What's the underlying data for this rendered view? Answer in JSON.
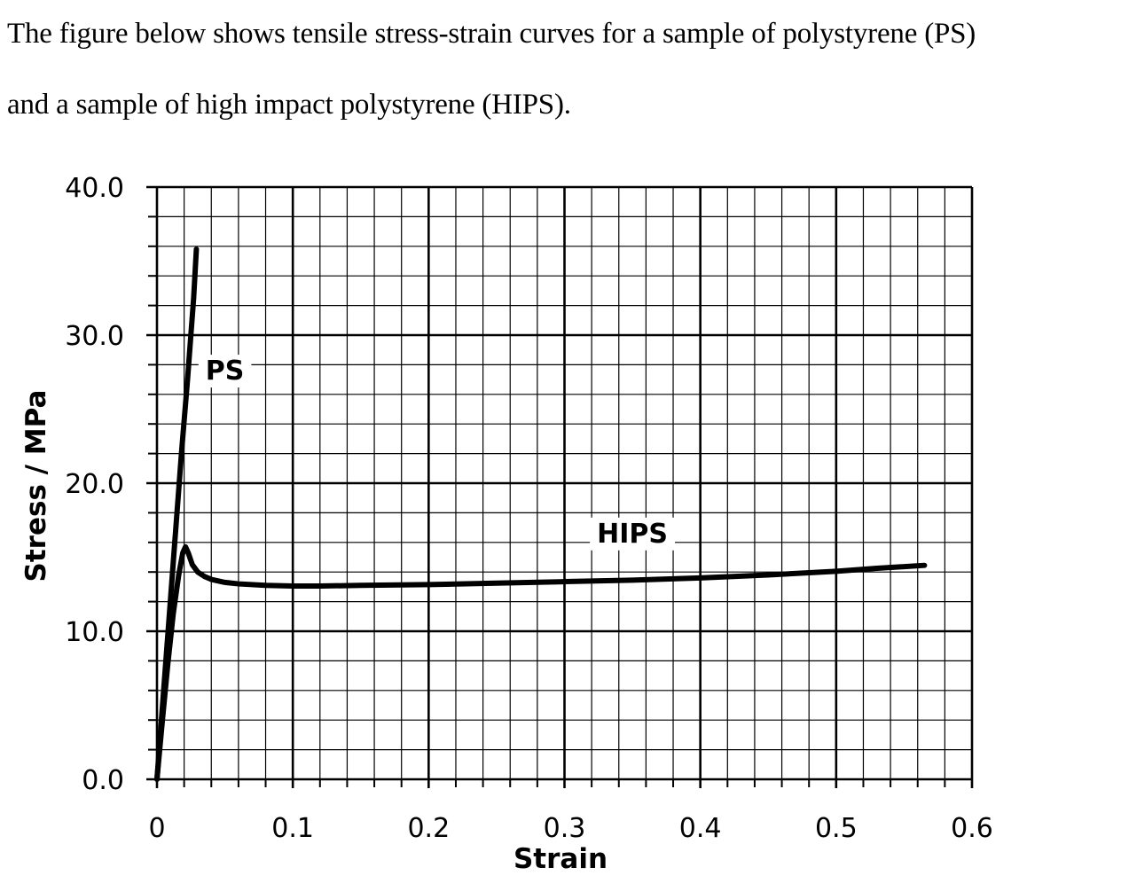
{
  "intro": {
    "line1": "The figure below shows tensile stress-strain curves for a sample of polystyrene (PS)",
    "line2": "and a sample of high impact polystyrene (HIPS)."
  },
  "chart_data": {
    "type": "line",
    "title": "",
    "xlabel": "Strain",
    "ylabel": "Stress / MPa",
    "xlim": [
      0,
      0.6
    ],
    "ylim": [
      0,
      40
    ],
    "x_ticks": [
      0,
      0.1,
      0.2,
      0.3,
      0.4,
      0.5,
      0.6
    ],
    "x_tick_labels": [
      "0",
      "0.1",
      "0.2",
      "0.3",
      "0.4",
      "0.5",
      "0.6"
    ],
    "y_ticks": [
      0,
      10,
      20,
      30,
      40
    ],
    "y_tick_labels": [
      "0.0",
      "10.0",
      "20.0",
      "30.0",
      "40.0"
    ],
    "grid": {
      "major_x": 0.1,
      "major_y": 10,
      "minor_x": 0.02,
      "minor_y": 2
    },
    "series": [
      {
        "name": "PS",
        "label_at": {
          "x": 0.05,
          "y": 27
        },
        "x": [
          0,
          0.0045,
          0.009,
          0.0135,
          0.018,
          0.0225,
          0.027,
          0.029
        ],
        "y": [
          0,
          5.5,
          11.0,
          16.5,
          22.0,
          27.0,
          32.5,
          35.8
        ]
      },
      {
        "name": "HIPS",
        "label_at": {
          "x": 0.35,
          "y": 16
        },
        "x": [
          0,
          0.004,
          0.008,
          0.012,
          0.016,
          0.019,
          0.021,
          0.023,
          0.026,
          0.03,
          0.035,
          0.04,
          0.05,
          0.06,
          0.08,
          0.1,
          0.12,
          0.15,
          0.2,
          0.25,
          0.3,
          0.35,
          0.4,
          0.45,
          0.5,
          0.53,
          0.565
        ],
        "y": [
          0,
          4.0,
          7.8,
          11.2,
          13.8,
          15.3,
          15.7,
          15.3,
          14.5,
          14.0,
          13.7,
          13.5,
          13.3,
          13.2,
          13.1,
          13.05,
          13.05,
          13.1,
          13.15,
          13.25,
          13.35,
          13.45,
          13.6,
          13.8,
          14.05,
          14.25,
          14.45
        ]
      }
    ]
  }
}
